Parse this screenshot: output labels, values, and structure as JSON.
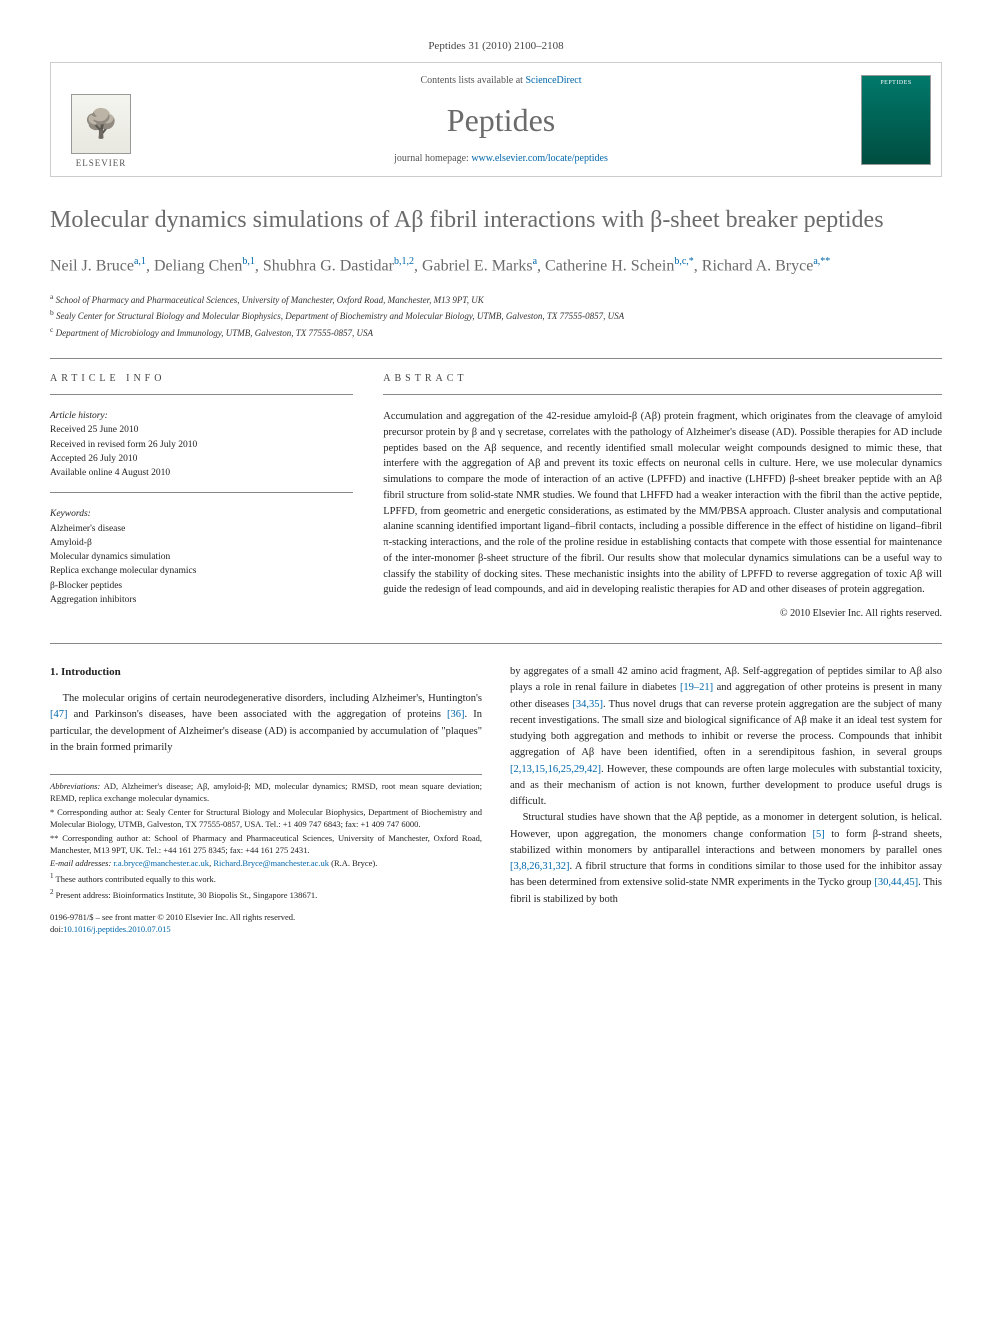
{
  "citation": "Peptides 31 (2010) 2100–2108",
  "header": {
    "contents_prefix": "Contents lists available at ",
    "contents_link": "ScienceDirect",
    "journal": "Peptides",
    "homepage_prefix": "journal homepage: ",
    "homepage_url": "www.elsevier.com/locate/peptides",
    "publisher": "ELSEVIER"
  },
  "title": "Molecular dynamics simulations of Aβ fibril interactions with β-sheet breaker peptides",
  "authors_html": "Neil J. Bruce<sup>a,1</sup>, Deliang Chen<sup>b,1</sup>, Shubhra G. Dastidar<sup>b,1,2</sup>, Gabriel E. Marks<sup>a</sup>, Catherine H. Schein<sup>b,c,*</sup>, Richard A. Bryce<sup>a,**</sup>",
  "affiliations": [
    {
      "sup": "a",
      "text": "School of Pharmacy and Pharmaceutical Sciences, University of Manchester, Oxford Road, Manchester, M13 9PT, UK"
    },
    {
      "sup": "b",
      "text": "Sealy Center for Structural Biology and Molecular Biophysics, Department of Biochemistry and Molecular Biology, UTMB, Galveston, TX 77555-0857, USA"
    },
    {
      "sup": "c",
      "text": "Department of Microbiology and Immunology, UTMB, Galveston, TX 77555-0857, USA"
    }
  ],
  "info": {
    "heading": "ARTICLE INFO",
    "history_label": "Article history:",
    "history": [
      "Received 25 June 2010",
      "Received in revised form 26 July 2010",
      "Accepted 26 July 2010",
      "Available online 4 August 2010"
    ],
    "keywords_label": "Keywords:",
    "keywords": [
      "Alzheimer's disease",
      "Amyloid-β",
      "Molecular dynamics simulation",
      "Replica exchange molecular dynamics",
      "β-Blocker peptides",
      "Aggregation inhibitors"
    ]
  },
  "abstract": {
    "heading": "ABSTRACT",
    "text": "Accumulation and aggregation of the 42-residue amyloid-β (Aβ) protein fragment, which originates from the cleavage of amyloid precursor protein by β and γ secretase, correlates with the pathology of Alzheimer's disease (AD). Possible therapies for AD include peptides based on the Aβ sequence, and recently identified small molecular weight compounds designed to mimic these, that interfere with the aggregation of Aβ and prevent its toxic effects on neuronal cells in culture. Here, we use molecular dynamics simulations to compare the mode of interaction of an active (LPFFD) and inactive (LHFFD) β-sheet breaker peptide with an Aβ fibril structure from solid-state NMR studies. We found that LHFFD had a weaker interaction with the fibril than the active peptide, LPFFD, from geometric and energetic considerations, as estimated by the MM/PBSA approach. Cluster analysis and computational alanine scanning identified important ligand–fibril contacts, including a possible difference in the effect of histidine on ligand–fibril π-stacking interactions, and the role of the proline residue in establishing contacts that compete with those essential for maintenance of the inter-monomer β-sheet structure of the fibril. Our results show that molecular dynamics simulations can be a useful way to classify the stability of docking sites. These mechanistic insights into the ability of LPFFD to reverse aggregation of toxic Aβ will guide the redesign of lead compounds, and aid in developing realistic therapies for AD and other diseases of protein aggregation.",
    "copyright": "© 2010 Elsevier Inc. All rights reserved."
  },
  "intro": {
    "heading": "1. Introduction",
    "para1": "The molecular origins of certain neurodegenerative disorders, including Alzheimer's, Huntington's [47] and Parkinson's diseases, have been associated with the aggregation of proteins [36]. In particular, the development of Alzheimer's disease (AD) is accompanied by accumulation of \"plaques\" in the brain formed primarily",
    "para2": "by aggregates of a small 42 amino acid fragment, Aβ. Self-aggregation of peptides similar to Aβ also plays a role in renal failure in diabetes [19–21] and aggregation of other proteins is present in many other diseases [34,35]. Thus novel drugs that can reverse protein aggregation are the subject of many recent investigations. The small size and biological significance of Aβ make it an ideal test system for studying both aggregation and methods to inhibit or reverse the process. Compounds that inhibit aggregation of Aβ have been identified, often in a serendipitous fashion, in several groups [2,13,15,16,25,29,42]. However, these compounds are often large molecules with substantial toxicity, and as their mechanism of action is not known, further development to produce useful drugs is difficult.",
    "para3": "Structural studies have shown that the Aβ peptide, as a monomer in detergent solution, is helical. However, upon aggregation, the monomers change conformation [5] to form β-strand sheets, stabilized within monomers by antiparallel interactions and between monomers by parallel ones [3,8,26,31,32]. A fibril structure that forms in conditions similar to those used for the inhibitor assay has been determined from extensive solid-state NMR experiments in the Tycko group [30,44,45]. This fibril is stabilized by both"
  },
  "footnotes": {
    "abbrev_label": "Abbreviations:",
    "abbrev": " AD, Alzheimer's disease; Aβ, amyloid-β; MD, molecular dynamics; RMSD, root mean square deviation; REMD, replica exchange molecular dynamics.",
    "corr1": "* Corresponding author at: Sealy Center for Structural Biology and Molecular Biophysics, Department of Biochemistry and Molecular Biology, UTMB, Galveston, TX 77555-0857, USA. Tel.: +1 409 747 6843; fax: +1 409 747 6000.",
    "corr2": "** Corresponding author at: School of Pharmacy and Pharmaceutical Sciences, University of Manchester, Oxford Road, Manchester, M13 9PT, UK. Tel.: +44 161 275 8345; fax: +44 161 275 2431.",
    "email_label": "E-mail addresses: ",
    "email1": "r.a.bryce@manchester.ac.uk",
    "email2": "Richard.Bryce@manchester.ac.uk",
    "email_tail": " (R.A. Bryce).",
    "note1": "These authors contributed equally to this work.",
    "note2": "Present address: Bioinformatics Institute, 30 Biopolis St., Singapore 138671."
  },
  "doi": {
    "line1": "0196-9781/$ – see front matter © 2010 Elsevier Inc. All rights reserved.",
    "line2_prefix": "doi:",
    "line2_link": "10.1016/j.peptides.2010.07.015"
  },
  "refs": {
    "r47": "[47]",
    "r36": "[36]",
    "r19_21": "[19–21]",
    "r34_35": "[34,35]",
    "r_multi": "[2,13,15,16,25,29,42]",
    "r5": "[5]",
    "r_multi2": "[3,8,26,31,32]",
    "r_tycko": "[30,44,45]"
  }
}
